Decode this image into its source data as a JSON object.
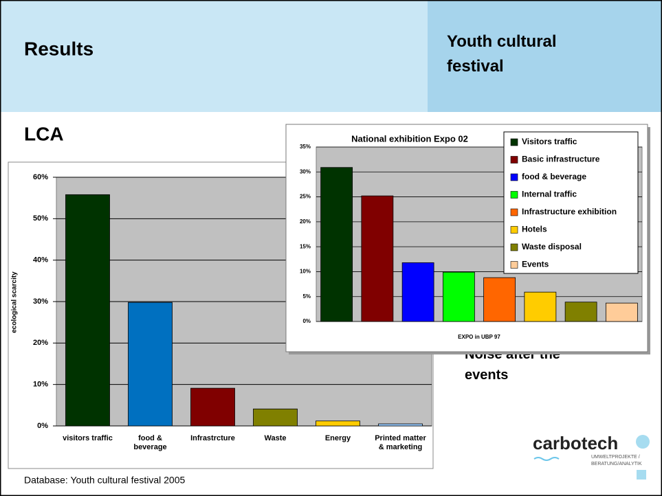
{
  "header": {
    "title": "Results",
    "subtitle": "Youth cultural festival"
  },
  "section": "LCA",
  "bullet": "Noise after the events",
  "footer": "Database: Youth cultural festival 2005",
  "logo": {
    "name": "carbotech",
    "tagline": [
      "UMWELTPROJEKTE /",
      "BERATUNG/ANALYTIK"
    ]
  },
  "chart_data": [
    {
      "type": "bar",
      "y_label": "ecological scarcity",
      "categories": [
        "visitors traffic",
        "food &\nbeverage",
        "Infrastrcture",
        "Waste",
        "Energy",
        "Printed matter\n& marketing"
      ],
      "values": [
        55.8,
        29.8,
        9.1,
        4.1,
        1.2,
        0.5
      ],
      "colors": [
        "#003300",
        "#0070c0",
        "#800000",
        "#808000",
        "#ffcc00",
        "#99ccff"
      ],
      "ylim": [
        0,
        60
      ],
      "yticks": [
        {
          "value": 0,
          "label": "0%"
        },
        {
          "value": 10,
          "label": "10%"
        },
        {
          "value": 20,
          "label": "20%"
        },
        {
          "value": 30,
          "label": "30%"
        },
        {
          "value": 40,
          "label": "40%"
        },
        {
          "value": 50,
          "label": "50%"
        },
        {
          "value": 60,
          "label": "60%"
        }
      ],
      "grid": true
    },
    {
      "type": "grouped-bar",
      "title": "National exhibition Expo 02",
      "categories": [
        "EXPO in UBP 97"
      ],
      "series": [
        {
          "name": "Visitors traffic",
          "color": "#003300",
          "values": [
            30.9
          ]
        },
        {
          "name": "Basic infrastructure",
          "color": "#800000",
          "values": [
            25.2
          ]
        },
        {
          "name": "food & beverage",
          "color": "#0000ff",
          "values": [
            11.8
          ]
        },
        {
          "name": "Internal traffic",
          "color": "#00ff00",
          "values": [
            9.9
          ]
        },
        {
          "name": "Infrastructure exhibition",
          "color": "#ff6600",
          "values": [
            8.8
          ]
        },
        {
          "name": "Hotels",
          "color": "#ffcc00",
          "values": [
            5.9
          ]
        },
        {
          "name": "Waste disposal",
          "color": "#808000",
          "values": [
            3.9
          ]
        },
        {
          "name": "Events",
          "color": "#ffcc99",
          "values": [
            3.7
          ]
        }
      ],
      "ylim": [
        0,
        35
      ],
      "yticks": [
        {
          "value": 0,
          "label": "0%"
        },
        {
          "value": 5,
          "label": "5%"
        },
        {
          "value": 10,
          "label": "10%"
        },
        {
          "value": 15,
          "label": "15%"
        },
        {
          "value": 20,
          "label": "20%"
        },
        {
          "value": 25,
          "label": "25%"
        },
        {
          "value": 30,
          "label": "30%"
        },
        {
          "value": 35,
          "label": "35%"
        }
      ],
      "grid": true,
      "legend": "top-right"
    }
  ]
}
